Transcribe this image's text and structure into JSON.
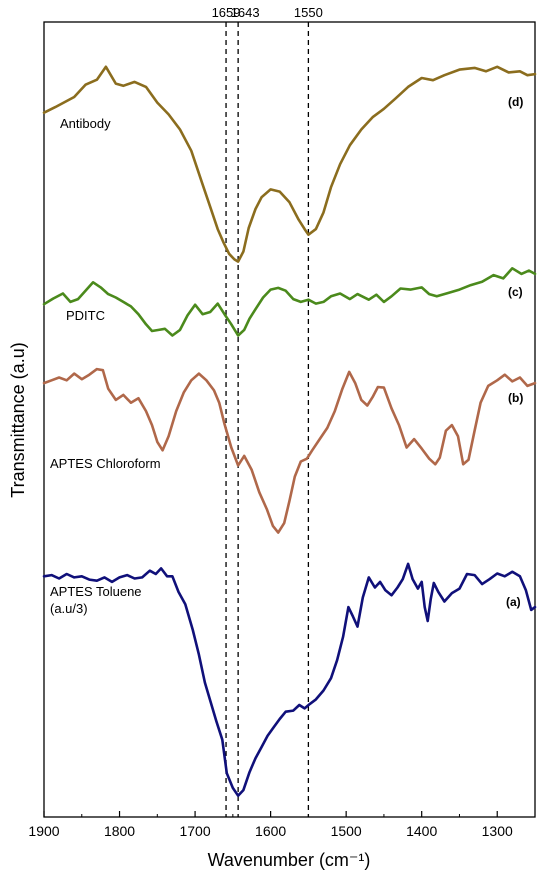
{
  "chart_data": {
    "type": "line",
    "xlabel": "Wavenumber (cm⁻¹)",
    "ylabel": "Transmittance (a.u)",
    "xlim": [
      1900,
      1250
    ],
    "x_reversed": true,
    "x_ticks": [
      "1900",
      "1800",
      "1700",
      "1600",
      "1500",
      "1400",
      "1300"
    ],
    "y_ticks_shown": false,
    "grid": false,
    "reference_lines": [
      {
        "x": 1659,
        "label": "1659",
        "style": "dashed"
      },
      {
        "x": 1643,
        "label": "1643",
        "style": "dashed"
      },
      {
        "x": 1550,
        "label": "1550",
        "style": "dashed"
      }
    ],
    "series": [
      {
        "name": "Antibody",
        "tag": "(d)",
        "color": "#8b6d1e",
        "points": [
          [
            1900,
            10.38
          ],
          [
            1885,
            10.48
          ],
          [
            1860,
            10.66
          ],
          [
            1845,
            10.88
          ],
          [
            1830,
            10.97
          ],
          [
            1818,
            11.2
          ],
          [
            1805,
            10.9
          ],
          [
            1795,
            10.86
          ],
          [
            1780,
            10.93
          ],
          [
            1765,
            10.84
          ],
          [
            1750,
            10.56
          ],
          [
            1735,
            10.35
          ],
          [
            1720,
            10.08
          ],
          [
            1705,
            9.7
          ],
          [
            1690,
            9.1
          ],
          [
            1680,
            8.7
          ],
          [
            1670,
            8.3
          ],
          [
            1662,
            8.05
          ],
          [
            1655,
            7.86
          ],
          [
            1648,
            7.76
          ],
          [
            1643,
            7.72
          ],
          [
            1636,
            7.9
          ],
          [
            1629,
            8.32
          ],
          [
            1620,
            8.66
          ],
          [
            1612,
            8.87
          ],
          [
            1600,
            9.01
          ],
          [
            1588,
            8.97
          ],
          [
            1575,
            8.78
          ],
          [
            1563,
            8.47
          ],
          [
            1555,
            8.3
          ],
          [
            1550,
            8.2
          ],
          [
            1540,
            8.3
          ],
          [
            1530,
            8.6
          ],
          [
            1520,
            9.05
          ],
          [
            1508,
            9.46
          ],
          [
            1495,
            9.8
          ],
          [
            1480,
            10.08
          ],
          [
            1465,
            10.3
          ],
          [
            1450,
            10.45
          ],
          [
            1435,
            10.63
          ],
          [
            1418,
            10.84
          ],
          [
            1400,
            11.0
          ],
          [
            1385,
            10.96
          ],
          [
            1370,
            11.05
          ],
          [
            1350,
            11.15
          ],
          [
            1330,
            11.18
          ],
          [
            1315,
            11.12
          ],
          [
            1300,
            11.2
          ],
          [
            1285,
            11.1
          ],
          [
            1270,
            11.12
          ],
          [
            1260,
            11.05
          ],
          [
            1250,
            11.07
          ]
        ]
      },
      {
        "name": "PDITC",
        "tag": "(c)",
        "color": "#4b8a1c",
        "points": [
          [
            1900,
            6.96
          ],
          [
            1888,
            7.06
          ],
          [
            1875,
            7.15
          ],
          [
            1865,
            7.0
          ],
          [
            1855,
            7.05
          ],
          [
            1845,
            7.2
          ],
          [
            1835,
            7.35
          ],
          [
            1825,
            7.26
          ],
          [
            1815,
            7.14
          ],
          [
            1805,
            7.08
          ],
          [
            1795,
            7.0
          ],
          [
            1785,
            6.92
          ],
          [
            1775,
            6.78
          ],
          [
            1765,
            6.6
          ],
          [
            1757,
            6.48
          ],
          [
            1748,
            6.5
          ],
          [
            1740,
            6.52
          ],
          [
            1730,
            6.4
          ],
          [
            1720,
            6.5
          ],
          [
            1710,
            6.76
          ],
          [
            1700,
            6.95
          ],
          [
            1690,
            6.78
          ],
          [
            1680,
            6.82
          ],
          [
            1670,
            6.97
          ],
          [
            1660,
            6.76
          ],
          [
            1652,
            6.6
          ],
          [
            1643,
            6.4
          ],
          [
            1635,
            6.5
          ],
          [
            1628,
            6.7
          ],
          [
            1620,
            6.87
          ],
          [
            1610,
            7.08
          ],
          [
            1600,
            7.22
          ],
          [
            1590,
            7.25
          ],
          [
            1580,
            7.2
          ],
          [
            1570,
            7.05
          ],
          [
            1560,
            7.0
          ],
          [
            1550,
            7.04
          ],
          [
            1540,
            6.97
          ],
          [
            1530,
            7.0
          ],
          [
            1520,
            7.1
          ],
          [
            1508,
            7.15
          ],
          [
            1495,
            7.05
          ],
          [
            1485,
            7.14
          ],
          [
            1470,
            7.04
          ],
          [
            1460,
            7.13
          ],
          [
            1450,
            7.0
          ],
          [
            1440,
            7.1
          ],
          [
            1428,
            7.24
          ],
          [
            1415,
            7.22
          ],
          [
            1400,
            7.26
          ],
          [
            1390,
            7.14
          ],
          [
            1380,
            7.1
          ],
          [
            1365,
            7.16
          ],
          [
            1350,
            7.22
          ],
          [
            1335,
            7.3
          ],
          [
            1320,
            7.36
          ],
          [
            1305,
            7.48
          ],
          [
            1292,
            7.42
          ],
          [
            1280,
            7.6
          ],
          [
            1268,
            7.5
          ],
          [
            1258,
            7.56
          ],
          [
            1250,
            7.5
          ]
        ]
      },
      {
        "name": "APTES Chloroform",
        "tag": "(b)",
        "color": "#b0684a",
        "points": [
          [
            1900,
            5.55
          ],
          [
            1890,
            5.6
          ],
          [
            1880,
            5.65
          ],
          [
            1870,
            5.6
          ],
          [
            1860,
            5.72
          ],
          [
            1850,
            5.62
          ],
          [
            1840,
            5.7
          ],
          [
            1830,
            5.8
          ],
          [
            1822,
            5.78
          ],
          [
            1815,
            5.45
          ],
          [
            1805,
            5.25
          ],
          [
            1795,
            5.34
          ],
          [
            1785,
            5.2
          ],
          [
            1775,
            5.28
          ],
          [
            1765,
            5.05
          ],
          [
            1757,
            4.8
          ],
          [
            1750,
            4.5
          ],
          [
            1743,
            4.35
          ],
          [
            1735,
            4.6
          ],
          [
            1725,
            5.05
          ],
          [
            1715,
            5.38
          ],
          [
            1705,
            5.6
          ],
          [
            1695,
            5.72
          ],
          [
            1685,
            5.6
          ],
          [
            1675,
            5.42
          ],
          [
            1668,
            5.2
          ],
          [
            1661,
            4.82
          ],
          [
            1652,
            4.4
          ],
          [
            1643,
            4.08
          ],
          [
            1635,
            4.25
          ],
          [
            1625,
            4.0
          ],
          [
            1615,
            3.6
          ],
          [
            1605,
            3.3
          ],
          [
            1597,
            3.0
          ],
          [
            1590,
            2.88
          ],
          [
            1582,
            3.05
          ],
          [
            1575,
            3.45
          ],
          [
            1568,
            3.88
          ],
          [
            1560,
            4.15
          ],
          [
            1552,
            4.2
          ],
          [
            1545,
            4.35
          ],
          [
            1535,
            4.55
          ],
          [
            1525,
            4.75
          ],
          [
            1515,
            5.05
          ],
          [
            1505,
            5.45
          ],
          [
            1496,
            5.75
          ],
          [
            1488,
            5.55
          ],
          [
            1480,
            5.25
          ],
          [
            1472,
            5.15
          ],
          [
            1465,
            5.3
          ],
          [
            1458,
            5.48
          ],
          [
            1450,
            5.47
          ],
          [
            1440,
            5.1
          ],
          [
            1430,
            4.8
          ],
          [
            1420,
            4.4
          ],
          [
            1410,
            4.55
          ],
          [
            1400,
            4.38
          ],
          [
            1390,
            4.2
          ],
          [
            1382,
            4.1
          ],
          [
            1376,
            4.22
          ],
          [
            1368,
            4.7
          ],
          [
            1360,
            4.8
          ],
          [
            1352,
            4.6
          ],
          [
            1345,
            4.1
          ],
          [
            1338,
            4.18
          ],
          [
            1330,
            4.7
          ],
          [
            1322,
            5.2
          ],
          [
            1312,
            5.5
          ],
          [
            1300,
            5.6
          ],
          [
            1290,
            5.7
          ],
          [
            1280,
            5.58
          ],
          [
            1270,
            5.65
          ],
          [
            1260,
            5.5
          ],
          [
            1250,
            5.55
          ]
        ]
      },
      {
        "name": "APTES Toluene\n(a.u/3)",
        "tag": "(a)",
        "color": "#10107a",
        "points": [
          [
            1900,
            2.1
          ],
          [
            1890,
            2.12
          ],
          [
            1880,
            2.06
          ],
          [
            1870,
            2.14
          ],
          [
            1860,
            2.08
          ],
          [
            1850,
            2.1
          ],
          [
            1840,
            2.04
          ],
          [
            1830,
            2.02
          ],
          [
            1820,
            2.08
          ],
          [
            1810,
            2.0
          ],
          [
            1800,
            2.08
          ],
          [
            1790,
            2.12
          ],
          [
            1780,
            2.06
          ],
          [
            1770,
            2.08
          ],
          [
            1760,
            2.2
          ],
          [
            1752,
            2.14
          ],
          [
            1745,
            2.24
          ],
          [
            1737,
            2.1
          ],
          [
            1730,
            2.1
          ],
          [
            1722,
            1.82
          ],
          [
            1713,
            1.6
          ],
          [
            1703,
            1.14
          ],
          [
            1695,
            0.7
          ],
          [
            1687,
            0.2
          ],
          [
            1680,
            -0.12
          ],
          [
            1672,
            -0.48
          ],
          [
            1664,
            -0.82
          ],
          [
            1658,
            -1.42
          ],
          [
            1650,
            -1.68
          ],
          [
            1643,
            -1.82
          ],
          [
            1636,
            -1.72
          ],
          [
            1628,
            -1.4
          ],
          [
            1620,
            -1.15
          ],
          [
            1612,
            -0.95
          ],
          [
            1604,
            -0.75
          ],
          [
            1596,
            -0.6
          ],
          [
            1588,
            -0.45
          ],
          [
            1580,
            -0.32
          ],
          [
            1570,
            -0.3
          ],
          [
            1562,
            -0.2
          ],
          [
            1555,
            -0.26
          ],
          [
            1548,
            -0.18
          ],
          [
            1540,
            -0.1
          ],
          [
            1530,
            0.06
          ],
          [
            1520,
            0.28
          ],
          [
            1512,
            0.6
          ],
          [
            1504,
            1.02
          ],
          [
            1497,
            1.55
          ],
          [
            1491,
            1.38
          ],
          [
            1485,
            1.2
          ],
          [
            1478,
            1.72
          ],
          [
            1470,
            2.08
          ],
          [
            1462,
            1.9
          ],
          [
            1455,
            2.0
          ],
          [
            1448,
            1.85
          ],
          [
            1440,
            1.76
          ],
          [
            1432,
            1.9
          ],
          [
            1425,
            2.05
          ],
          [
            1418,
            2.32
          ],
          [
            1412,
            2.05
          ],
          [
            1405,
            1.88
          ],
          [
            1400,
            2.0
          ],
          [
            1396,
            1.55
          ],
          [
            1392,
            1.3
          ],
          [
            1388,
            1.7
          ],
          [
            1384,
            1.98
          ],
          [
            1378,
            1.82
          ],
          [
            1370,
            1.65
          ],
          [
            1360,
            1.8
          ],
          [
            1350,
            1.88
          ],
          [
            1340,
            2.14
          ],
          [
            1330,
            2.12
          ],
          [
            1320,
            1.96
          ],
          [
            1310,
            2.05
          ],
          [
            1300,
            2.15
          ],
          [
            1290,
            2.1
          ],
          [
            1280,
            2.18
          ],
          [
            1270,
            2.1
          ],
          [
            1262,
            1.85
          ],
          [
            1255,
            1.5
          ],
          [
            1250,
            1.55
          ]
        ]
      }
    ]
  }
}
